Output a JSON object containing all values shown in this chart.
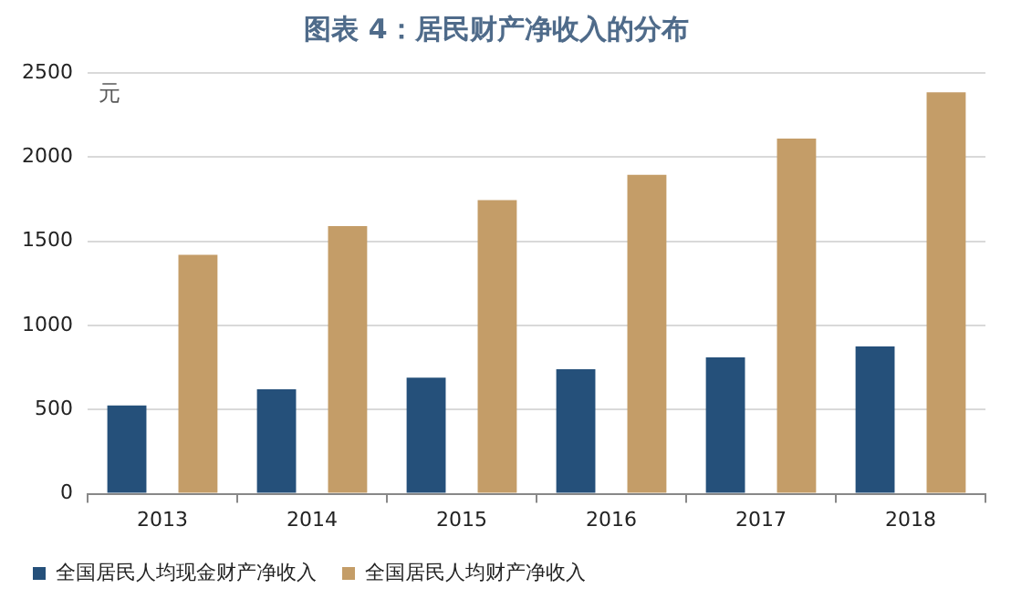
{
  "chart_data": {
    "type": "bar",
    "title": "图表 4：居民财产净收入的分布",
    "ylabel": "元",
    "categories": [
      "2013",
      "2014",
      "2015",
      "2016",
      "2017",
      "2018"
    ],
    "series": [
      {
        "name": "全国居民人均现金财产净收入",
        "color": "#25507a",
        "values": [
          525,
          620,
          690,
          740,
          810,
          875
        ]
      },
      {
        "name": "全国居民人均财产净收入",
        "color": "#c49d68",
        "values": [
          1420,
          1590,
          1745,
          1895,
          2110,
          2385
        ]
      }
    ],
    "ylim": [
      0,
      2500
    ],
    "yticks": [
      0,
      500,
      1000,
      1500,
      2000,
      2500
    ],
    "grid": "y",
    "legend": "bottom"
  }
}
